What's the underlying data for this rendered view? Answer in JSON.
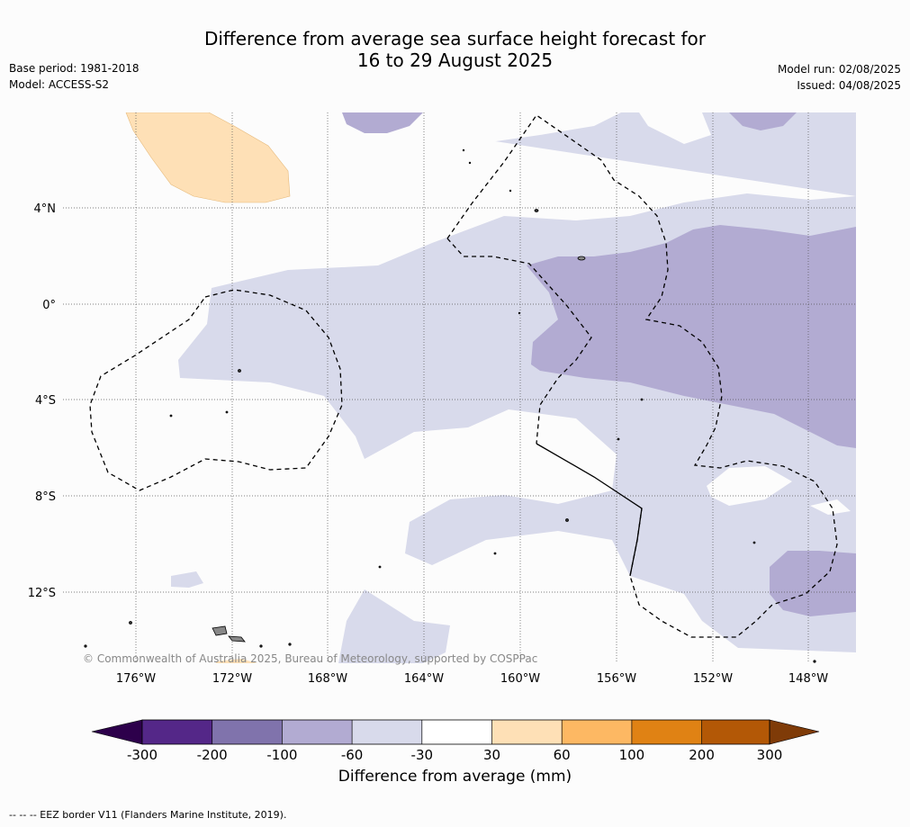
{
  "title_line1": "Difference from average sea surface height forecast for",
  "title_line2": "16 to 29 August 2025",
  "base_period": "Base period: 1981-2018",
  "model": "Model: ACCESS-S2",
  "model_run": "Model run: 02/08/2025",
  "issued": "Issued: 04/08/2025",
  "copyright": "© Commonwealth of Australia 2025, Bureau of Meteorology, supported by COSPPac",
  "lat_labels": [
    "4°N",
    "0°",
    "4°S",
    "8°S",
    "12°S"
  ],
  "lon_labels": [
    "176°W",
    "172°W",
    "168°W",
    "164°W",
    "160°W",
    "156°W",
    "152°W",
    "148°W"
  ],
  "colorbar": {
    "label": "Difference from average (mm)",
    "ticks": [
      "-300",
      "-200",
      "-100",
      "-60",
      "-30",
      "30",
      "60",
      "100",
      "200",
      "300"
    ],
    "colors": [
      "#2d004b",
      "#542788",
      "#8073ac",
      "#b2abd2",
      "#d8daeb",
      "#ffffff",
      "#fee0b6",
      "#fdb863",
      "#e08214",
      "#b35806",
      "#7f3b08"
    ]
  },
  "footer": "--  --  -- EEZ border V11 (Flanders Marine Institute, 2019)."
}
